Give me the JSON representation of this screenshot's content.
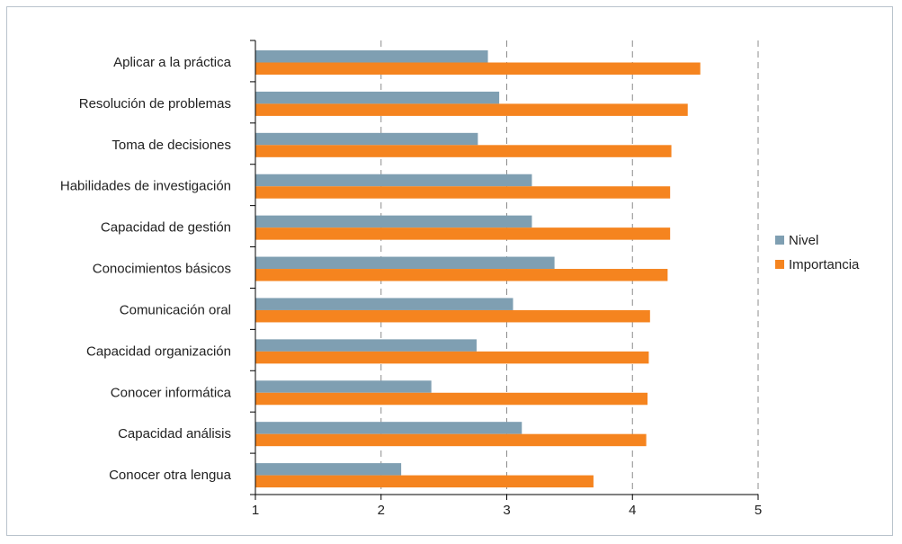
{
  "chart_data": {
    "type": "bar",
    "orientation": "horizontal",
    "title": "",
    "xlabel": "",
    "ylabel": "",
    "xlim": [
      1,
      5
    ],
    "xticks": [
      1,
      2,
      3,
      4,
      5
    ],
    "grid": true,
    "legend_position": "right",
    "categories": [
      "Aplicar a la práctica",
      "Resolución de problemas",
      "Toma de decisiones",
      "Habilidades de investigación",
      "Capacidad de gestión",
      "Conocimientos básicos",
      "Comunicación oral",
      "Capacidad organización",
      "Conocer informática",
      "Capacidad análisis",
      "Conocer otra lengua"
    ],
    "series": [
      {
        "name": "Nivel",
        "color": "#7f9fb2",
        "values": [
          2.85,
          2.94,
          2.77,
          3.2,
          3.2,
          3.38,
          3.05,
          2.76,
          2.4,
          3.12,
          2.16
        ]
      },
      {
        "name": "Importancia",
        "color": "#f5841f",
        "values": [
          4.54,
          4.44,
          4.31,
          4.3,
          4.3,
          4.28,
          4.14,
          4.13,
          4.12,
          4.11,
          3.69
        ]
      }
    ]
  }
}
